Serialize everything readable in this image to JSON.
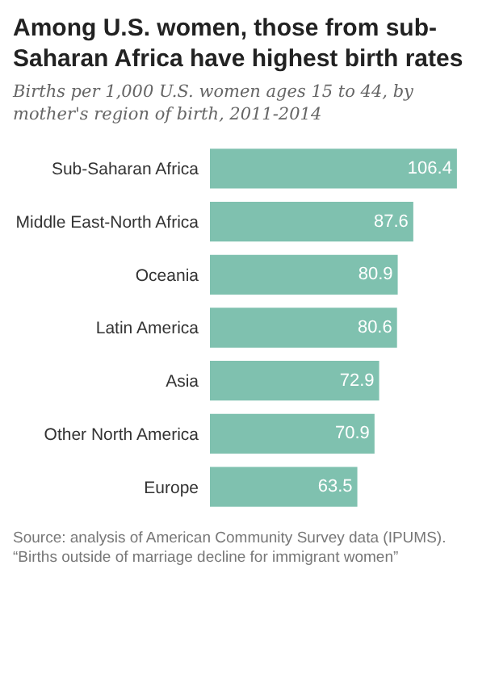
{
  "chart_data": {
    "type": "bar",
    "orientation": "horizontal",
    "title": "Among U.S. women, those from sub-Saharan Africa have highest birth rates",
    "subtitle": "Births per 1,000 U.S. women ages 15 to 44, by mother's region of birth, 2011-2014",
    "categories": [
      "Sub-Saharan Africa",
      "Middle East-North Africa",
      "Oceania",
      "Latin America",
      "Asia",
      "Other North America",
      "Europe"
    ],
    "values": [
      106.4,
      87.6,
      80.9,
      80.6,
      72.9,
      70.9,
      63.5
    ],
    "color": "#7fc1af",
    "data_labels": true,
    "annotations": [
      "Source: analysis of American Community Survey data (IPUMS).",
      "“Births outside of marriage decline for immigrant women”"
    ]
  }
}
